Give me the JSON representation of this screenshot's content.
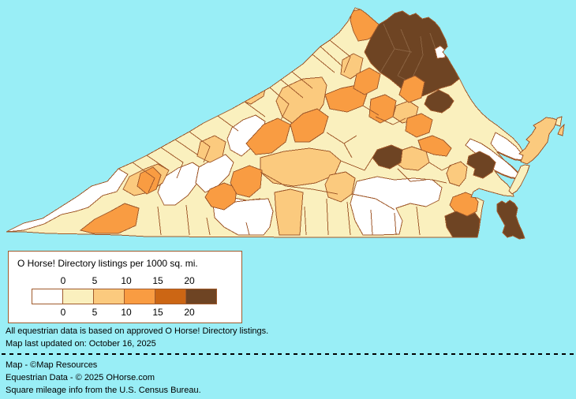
{
  "page": {
    "background_color": "#99EEF6"
  },
  "map": {
    "type": "choropleth",
    "state": "Virginia counties",
    "water_color": "#99EEF6",
    "border_color": "#A05A2C",
    "nova_inner_border_color": "#8A6240",
    "levels": [
      "#FFFFFF",
      "#FAF0BE",
      "#FBCA7E",
      "#F99C42",
      "#CC6614",
      "#6E4423"
    ]
  },
  "legend": {
    "title": "O Horse! Directory listings per 1000 sq. mi.",
    "ticks": [
      "0",
      "5",
      "10",
      "15",
      "20"
    ],
    "bucket_colors": [
      "#FFFFFF",
      "#FAF0BE",
      "#FBCA7E",
      "#F99C42",
      "#CC6614",
      "#6E4423"
    ],
    "border_color": "#A05A2C",
    "background_color": "#FFFFFF"
  },
  "notes": {
    "line1": "All equestrian data is based on approved O Horse! Directory listings.",
    "line2": "Map last updated on: October 16, 2025"
  },
  "credits": {
    "line1": "Map - ©Map Resources",
    "line2": "Equestrian Data - © 2025 OHorse.com",
    "line3": "Square mileage info from the U.S. Census Bureau."
  }
}
